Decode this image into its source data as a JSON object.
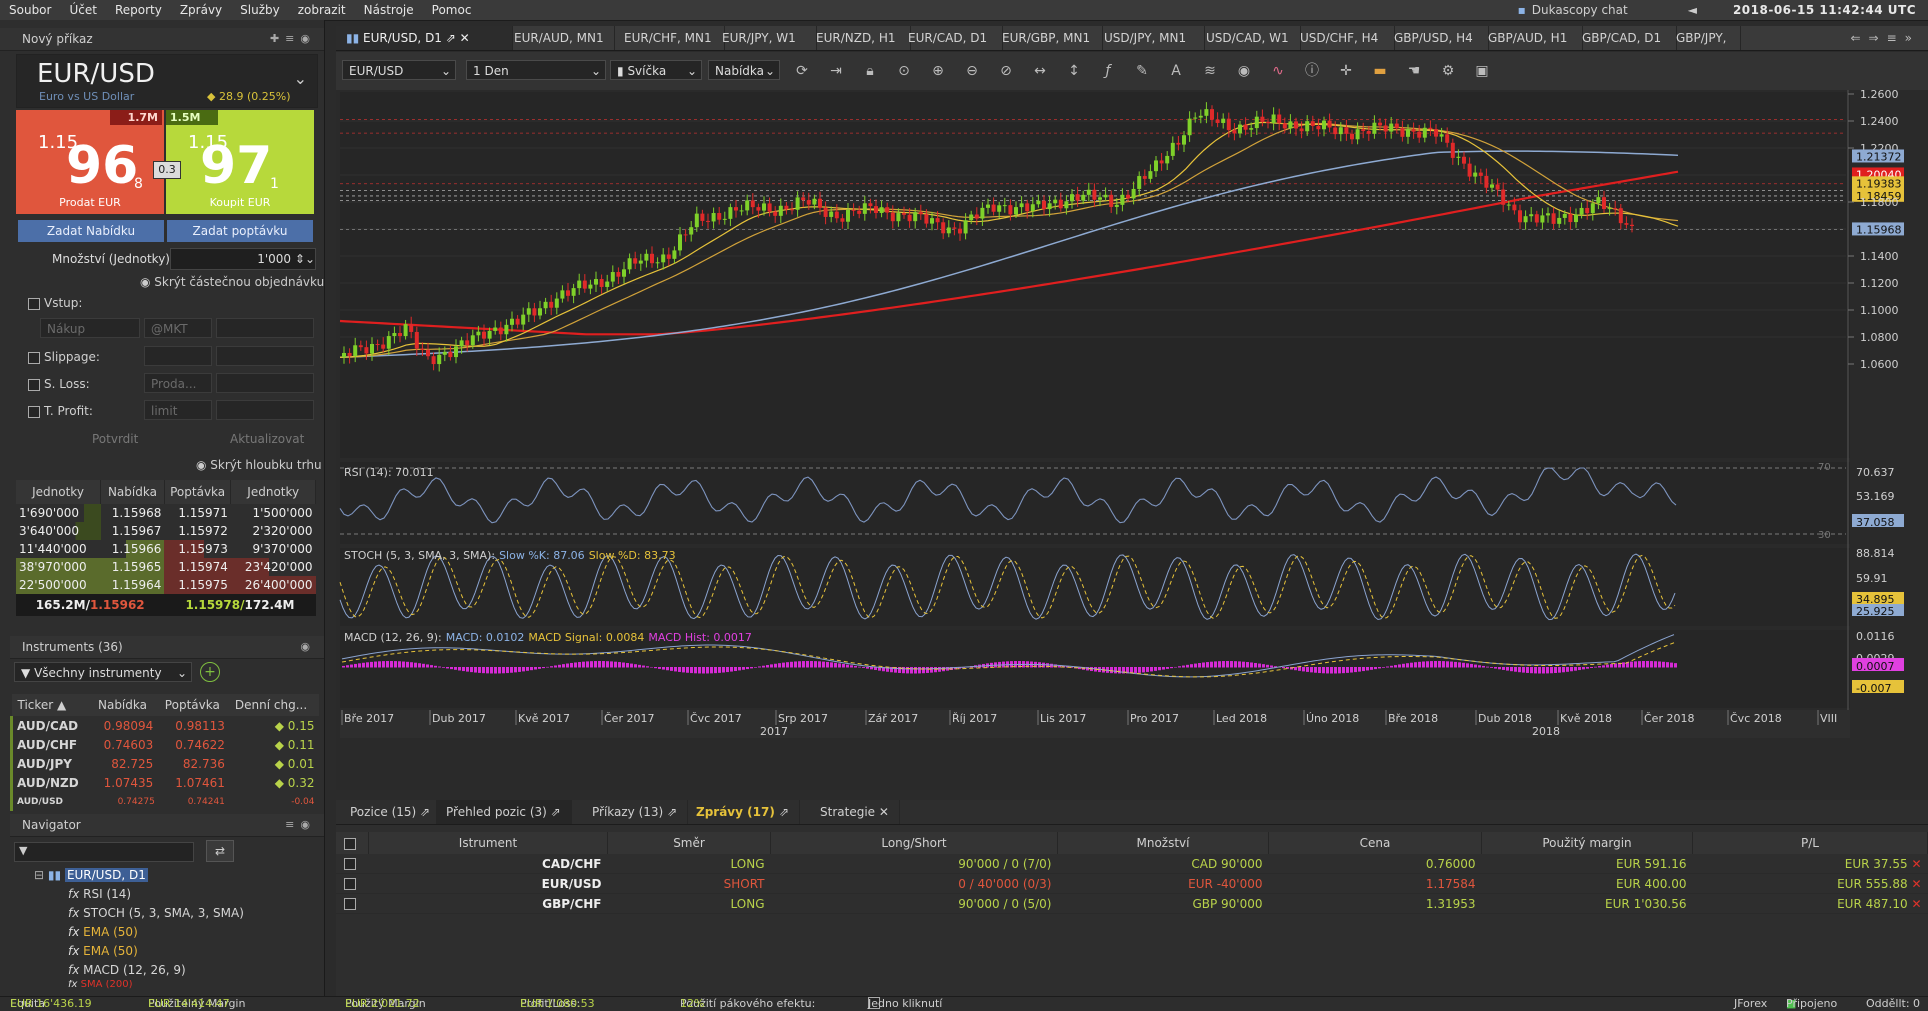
{
  "menu": [
    "Soubor",
    "Účet",
    "Reporty",
    "Zprávy",
    "Služby",
    "zobrazit",
    "Nástroje",
    "Pomoc"
  ],
  "chat": "Dukascopy chat",
  "clock": "2018-06-15 11:42:44 UTC",
  "left": {
    "new_order": "Nový příkaz",
    "symbol": "EUR/USD",
    "symbol_desc": "Euro vs US Dollar",
    "change": "28.9 (0.25%)",
    "sell": {
      "vol": "1.7M",
      "prefix": "1.15",
      "big": "96",
      "pip": "8",
      "label": "Prodat EUR"
    },
    "buy": {
      "vol": "1.5M",
      "prefix": "1.15",
      "big": "97",
      "pip": "1",
      "label": "Koupit EUR"
    },
    "spread": "0.3",
    "btn_bid": "Zadat Nabídku",
    "btn_ask": "Zadat poptávku",
    "qty_label": "Množství (Jednotky):",
    "qty_value": "1'000",
    "hide_partial": "Skrýt částečnou objednávku",
    "entry": "Vstup:",
    "entry_field": "Nákup",
    "entry_field2": "@MKT",
    "slippage": "Slippage:",
    "sloss": "S. Loss:",
    "sloss_field": "Proda...",
    "tprofit": "T. Profit:",
    "tprofit_field": "limit",
    "confirm": "Potvrdit",
    "update": "Aktualizovat",
    "hide_depth": "Skrýt hloubku trhu",
    "book_headers": [
      "Jednotky",
      "Nabídka",
      "Poptávka",
      "Jednotky"
    ],
    "book_rows": [
      [
        "1'690'000",
        "1.15968",
        "1.15971",
        "1'500'000"
      ],
      [
        "3'640'000",
        "1.15967",
        "1.15972",
        "2'320'000"
      ],
      [
        "11'440'000",
        "1.15966",
        "1.15973",
        "9'370'000"
      ],
      [
        "38'970'000",
        "1.15965",
        "1.15974",
        "23'420'000"
      ],
      [
        "22'500'000",
        "1.15964",
        "1.15975",
        "26'400'000"
      ]
    ],
    "book_total": [
      "165.2M/",
      "1.15962",
      "1.15978/",
      "172.4M"
    ],
    "instruments_title": "Instruments (36)",
    "instruments_filter": "Všechny instrumenty",
    "instr_headers": [
      "Ticker",
      "Nabídka",
      "Poptávka",
      "Denní chg..."
    ],
    "instr_rows": [
      [
        "AUD/CAD",
        "0.98094",
        "0.98113",
        "0.15"
      ],
      [
        "AUD/CHF",
        "0.74603",
        "0.74622",
        "0.11"
      ],
      [
        "AUD/JPY",
        "82.725",
        "82.736",
        "0.01"
      ],
      [
        "AUD/NZD",
        "1.07435",
        "1.07461",
        "0.32"
      ],
      [
        "AUD/USD",
        "0.74275",
        "0.74241",
        "-0.04"
      ]
    ],
    "navigator_title": "Navigator",
    "nav_items": [
      "EUR/USD, D1",
      "RSI (14)",
      "STOCH (5, 3, SMA, 3, SMA)",
      "EMA (50)",
      "EMA (50)",
      "MACD (12, 26, 9)",
      "SMA (200)"
    ]
  },
  "tabs": [
    "EUR/USD, D1",
    "EUR/AUD, MN1",
    "EUR/CHF, MN1",
    "EUR/JPY, W1",
    "EUR/NZD, H1",
    "EUR/CAD, D1",
    "EUR/GBP, MN1",
    "USD/JPY, MN1",
    "USD/CAD, W1",
    "USD/CHF, H4",
    "GBP/USD, H4",
    "GBP/AUD, H1",
    "GBP/CAD, D1",
    "GBP/JPY,"
  ],
  "toolbar": {
    "instrument": "EUR/USD",
    "period": "1 Den",
    "type": "Svíčka",
    "side": "Nabídka"
  },
  "chart": {
    "price_labels": [
      "1.2600",
      "1.2400",
      "1.2200",
      "1.21372",
      "1.20040",
      "1.19383",
      "1.18459",
      "1.1800",
      "1.15968",
      "1.1400",
      "1.1200",
      "1.1000",
      "1.0800",
      "1.0600"
    ],
    "rsi_label": "RSI (14): 70.011",
    "rsi_levels": [
      "70.637",
      "53.169",
      "37.058"
    ],
    "stoch_label_a": "STOCH (5, 3, SMA, 3, SMA):",
    "stoch_label_b": "Slow %K: 87.06",
    "stoch_label_c": "Slow %D: 83.73",
    "stoch_levels": [
      "88.814",
      "59.91",
      "34.895",
      "25.925"
    ],
    "macd_label_a": "MACD (12, 26, 9):",
    "macd_label_b": "MACD: 0.0102",
    "macd_label_c": "MACD Signal: 0.0084",
    "macd_label_d": "MACD Hist: 0.0017",
    "macd_levels": [
      "0.0116",
      "0.0029",
      "0.0007",
      "-0.007"
    ],
    "dates": [
      "Bře 2017",
      "Dub 2017",
      "Kvě 2017",
      "Čer 2017",
      "Čvc 2017",
      "Srp 2017",
      "Zář 2017",
      "Říj 2017",
      "Lis 2017",
      "Pro 2017",
      "Led 2018",
      "Úno 2018",
      "Bře 2018",
      "Dub 2018",
      "Kvě 2018",
      "Čer 2018",
      "Čvc 2018",
      "VIII"
    ],
    "years": [
      "2017",
      "2018"
    ],
    "rsi_lvl_70": "70",
    "rsi_lvl_30": "30"
  },
  "bottom": {
    "tabs": [
      "Pozice (15)",
      "Přehled pozic (3)",
      "Příkazy (13)",
      "Zprávy (17)",
      "Strategie"
    ],
    "headers": [
      "Istrument",
      "Směr",
      "Long/Short",
      "Množství",
      "Cena",
      "Použitý margin",
      "P/L"
    ],
    "rows": [
      [
        "CAD/CHF",
        "LONG",
        "90'000 / 0 (7/0)",
        "CAD 90'000",
        "0.76000",
        "EUR 591.16",
        "EUR 37.55"
      ],
      [
        "EUR/USD",
        "SHORT",
        "0 / 40'000 (0/3)",
        "EUR -40'000",
        "1.17584",
        "EUR 400.00",
        "EUR 555.88"
      ],
      [
        "GBP/CHF",
        "LONG",
        "90'000 / 0 (5/0)",
        "GBP 90'000",
        "1.31953",
        "EUR 1'030.56",
        "EUR 487.10"
      ]
    ]
  },
  "status": {
    "equity_l": "Equita",
    "equity": "EUR 16'436.19",
    "usable_l": "Použitelný Margin",
    "usable": "EUR 14'414.47",
    "used_l": "Použitý Margin",
    "used": "EUR 2'021.72",
    "pl_l": "Profit/Loss:",
    "pl": "EUR 1'080.53",
    "lev_l": "Použití pákového efektu:",
    "lev": "12%",
    "one_click": "Jedno kliknutí",
    "jforex": "JForex",
    "connected": "Připojeno",
    "delay": "Odděllt: 0"
  }
}
